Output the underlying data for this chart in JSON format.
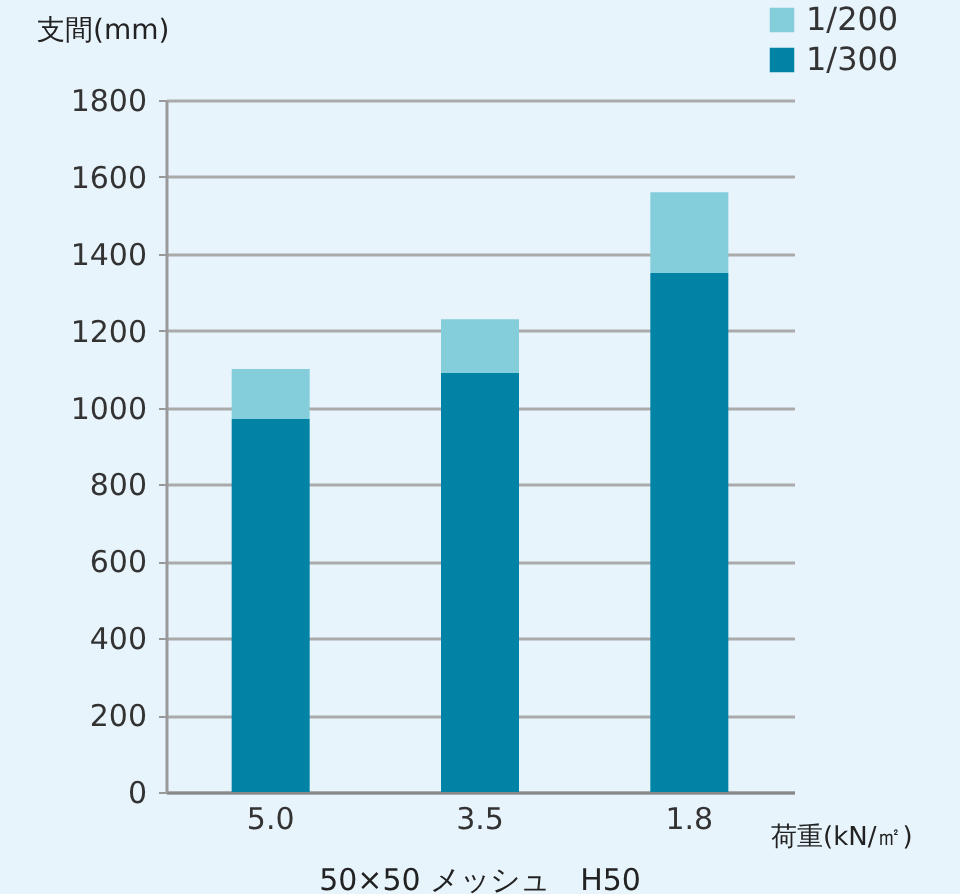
{
  "chart_data": {
    "type": "bar",
    "stacked": true,
    "ylabel": "支間(mm)",
    "xlabel": "荷重(kN/㎡)",
    "annotations": [
      "50×50 メッシュ　H50"
    ],
    "categories": [
      "5.0",
      "3.5",
      "1.8"
    ],
    "series": [
      {
        "name": "1/300",
        "color": "#0083a4",
        "values": [
          970,
          1090,
          1350
        ]
      },
      {
        "name": "1/200",
        "color": "#84cedc",
        "values": [
          130,
          140,
          210
        ]
      }
    ],
    "ylim": [
      0,
      1800
    ],
    "yticks": [
      0,
      200,
      400,
      600,
      800,
      1000,
      1200,
      1400,
      1600,
      1800
    ],
    "grid": "y",
    "legend": "top right"
  }
}
